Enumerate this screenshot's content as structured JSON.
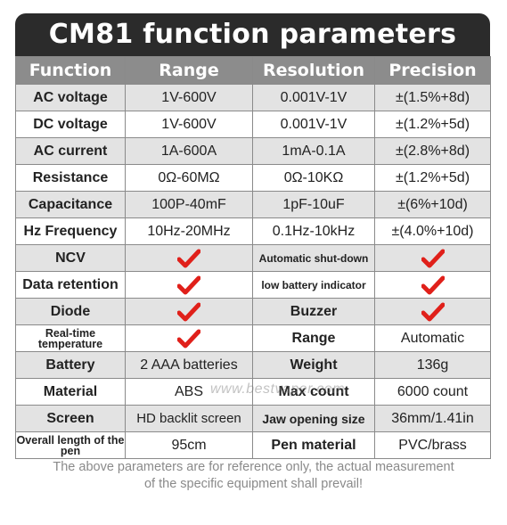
{
  "title": "CM81 function parameters",
  "headers": [
    "Function",
    "Range",
    "Resolution",
    "Precision"
  ],
  "rows": [
    [
      "AC voltage",
      "1V-600V",
      "0.001V-1V",
      "±(1.5%+8d)"
    ],
    [
      "DC voltage",
      "1V-600V",
      "0.001V-1V",
      "±(1.2%+5d)"
    ],
    [
      "AC current",
      "1A-600A",
      "1mA-0.1A",
      "±(2.8%+8d)"
    ],
    [
      "Resistance",
      "0Ω-60MΩ",
      "0Ω-10KΩ",
      "±(1.2%+5d)"
    ],
    [
      "Capacitance",
      "100P-40mF",
      "1pF-10uF",
      "±(6%+10d)"
    ],
    [
      "Hz Frequency",
      "10Hz-20MHz",
      "0.1Hz-10kHz",
      "±(4.0%+10d)"
    ],
    [
      "NCV",
      "",
      "Automatic shut-down",
      ""
    ],
    [
      "Data retention",
      "",
      "low battery indicator",
      ""
    ],
    [
      "Diode",
      "",
      "Buzzer",
      ""
    ],
    [
      "Real-time temperature",
      "",
      "Range",
      "Automatic"
    ],
    [
      "Battery",
      "2 AAA batteries",
      "Weight",
      "136g"
    ],
    [
      "Material",
      "ABS",
      "Max count",
      "6000 count"
    ],
    [
      "Screen",
      "HD backlit screen",
      "Jaw opening size",
      "36mm/1.41in"
    ],
    [
      "Overall length of the pen",
      "95cm",
      "Pen material",
      "PVC/brass"
    ]
  ],
  "watermark": "www.bestvaper.com",
  "footer": {
    "line1": "The above parameters are for reference only, the actual measurement",
    "line2": "of the specific equipment shall prevail!"
  },
  "colors": {
    "title_bg": "#2b2b2b",
    "header_bg": "#8c8c8c",
    "row_alt_bg": "#e3e3e3",
    "check": "#e0201a"
  },
  "icons": {
    "check": "red-checkmark-icon"
  }
}
